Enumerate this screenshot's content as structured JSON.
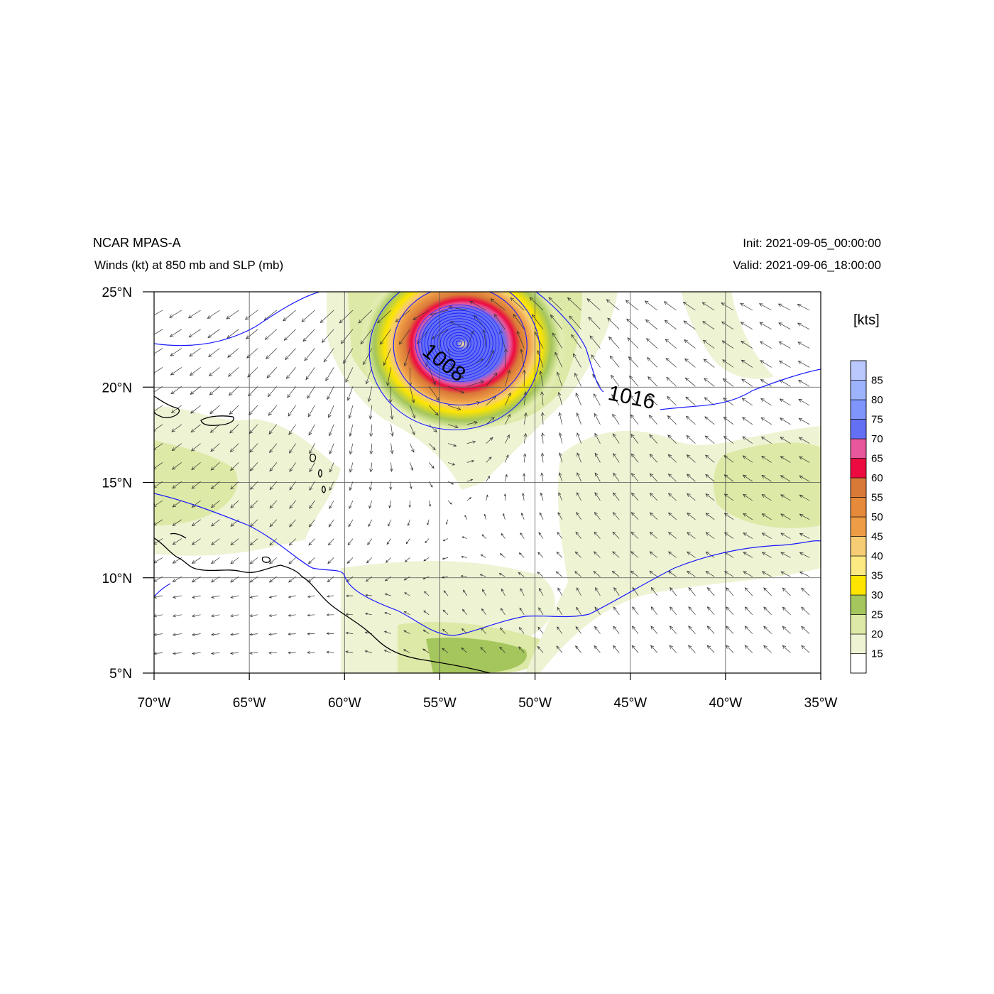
{
  "header": {
    "title": "NCAR MPAS-A",
    "subtitle": "Winds (kt) at 850 mb and SLP (mb)",
    "init": "Init: 2021-09-05_00:00:00",
    "valid": "Valid: 2021-09-06_18:00:00"
  },
  "map": {
    "lon_range": [
      -70,
      -35
    ],
    "lat_range": [
      5,
      25
    ],
    "lon_ticks": [
      {
        "value": -70,
        "label": "70°W"
      },
      {
        "value": -65,
        "label": "65°W"
      },
      {
        "value": -60,
        "label": "60°W"
      },
      {
        "value": -55,
        "label": "55°W"
      },
      {
        "value": -50,
        "label": "50°W"
      },
      {
        "value": -45,
        "label": "45°W"
      },
      {
        "value": -40,
        "label": "40°W"
      },
      {
        "value": -35,
        "label": "35°W"
      }
    ],
    "lat_ticks": [
      {
        "value": 25,
        "label": "25°N"
      },
      {
        "value": 20,
        "label": "20°N"
      },
      {
        "value": 15,
        "label": "15°N"
      },
      {
        "value": 10,
        "label": "10°N"
      },
      {
        "value": 5,
        "label": "5°N"
      }
    ],
    "gridlines": true,
    "storm_center": {
      "lon": -54,
      "lat": 22.3
    },
    "isobar_labels": [
      {
        "text": "1008",
        "lon": -55.0,
        "lat": 21.0
      },
      {
        "text": "1016",
        "lon": -45.0,
        "lat": 19.1
      }
    ],
    "colors": {
      "isobar": "#1a1aff",
      "coast": "#000000",
      "grid": "#555555",
      "vector": "#333333"
    }
  },
  "colorbar": {
    "units": "[kts]",
    "levels": [
      15,
      20,
      25,
      30,
      35,
      40,
      45,
      50,
      55,
      60,
      65,
      70,
      75,
      80,
      85
    ],
    "colors": [
      "#ffffff",
      "#eef3d4",
      "#dde9a6",
      "#a4c65c",
      "#fde500",
      "#fde981",
      "#f6cd74",
      "#ee9c46",
      "#e5893a",
      "#d97938",
      "#ec0a40",
      "#e6579b",
      "#6470f4",
      "#7f95fb",
      "#9db4fd",
      "#bac8fd"
    ]
  }
}
